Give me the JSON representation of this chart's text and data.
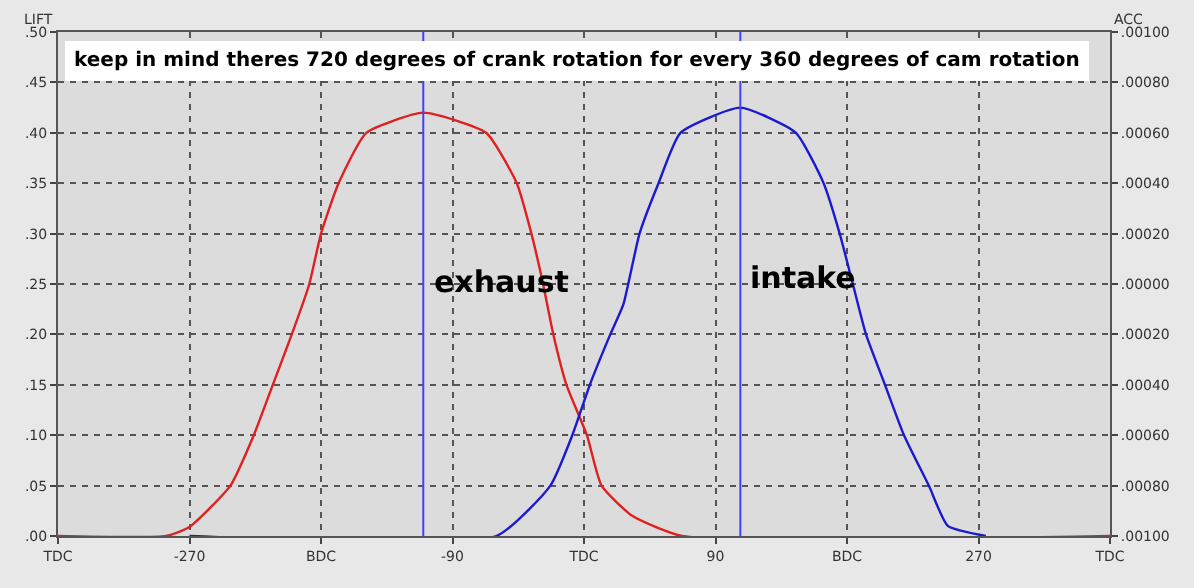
{
  "chart_data": {
    "type": "line",
    "title": "keep in mind theres 720 degrees of crank rotation for every 360 degrees of cam rotation",
    "ylabel": "LIFT",
    "y2label": "ACC",
    "series": [
      {
        "name": "exhaust",
        "color": "#e02020",
        "x": [
          -360,
          -286,
          -270,
          -242,
          -226,
          -213,
          -200,
          -188,
          -180,
          -168,
          -149,
          -110,
          -67,
          -46,
          -36,
          -28,
          -21,
          -12,
          2,
          12,
          33,
          67,
          360
        ],
        "values": [
          0,
          0,
          0.009,
          0.05,
          0.1,
          0.15,
          0.2,
          0.25,
          0.3,
          0.35,
          0.4,
          0.42,
          0.4,
          0.35,
          0.3,
          0.25,
          0.2,
          0.15,
          0.1,
          0.05,
          0.02,
          0,
          0
        ]
      },
      {
        "name": "intake",
        "color": "#1a1ad0",
        "x": [
          -270,
          -60,
          -23,
          -8,
          4,
          18,
          27,
          38,
          51,
          66,
          107,
          145,
          164,
          175,
          184,
          193,
          206,
          219,
          236,
          249,
          275
        ],
        "values": [
          0,
          0,
          0.05,
          0.1,
          0.15,
          0.2,
          0.23,
          0.3,
          0.35,
          0.4,
          0.425,
          0.4,
          0.35,
          0.3,
          0.25,
          0.2,
          0.15,
          0.1,
          0.05,
          0.01,
          0
        ]
      }
    ],
    "ref_lines": [
      {
        "axis": "x",
        "value": -110,
        "color": "#4040ff"
      },
      {
        "axis": "x",
        "value": 107,
        "color": "#4040ff"
      }
    ],
    "xlim": [
      -360,
      360
    ],
    "xticks": [
      {
        "value": -360,
        "label": "TDC"
      },
      -270,
      {
        "value": -180,
        "label": "BDC"
      },
      -90,
      {
        "value": 0,
        "label": "TDC"
      },
      90,
      {
        "value": 180,
        "label": "BDC"
      },
      270,
      {
        "value": 360,
        "label": "TDC"
      }
    ],
    "ylim": [
      0,
      0.5
    ],
    "yticks": [
      {
        "value": 0,
        "label": ".00"
      },
      {
        "value": 0.05,
        "label": ".05"
      },
      {
        "value": 0.1,
        "label": ".10"
      },
      {
        "value": 0.15,
        "label": ".15"
      },
      {
        "value": 0.2,
        "label": ".20"
      },
      {
        "value": 0.25,
        "label": ".25"
      },
      {
        "value": 0.3,
        "label": ".30"
      },
      {
        "value": 0.35,
        "label": ".35"
      },
      {
        "value": 0.4,
        "label": ".40"
      },
      {
        "value": 0.45,
        "label": ".45"
      },
      {
        "value": 0.5,
        "label": ".50"
      }
    ],
    "y2lim": [
      -0.001,
      0.001
    ],
    "y2ticks": [
      {
        "value": 0.001,
        "label": ".00100"
      },
      {
        "value": 0.0008,
        "label": ".00080"
      },
      {
        "value": 0.0006,
        "label": ".00060"
      },
      {
        "value": 0.0004,
        "label": ".00040"
      },
      {
        "value": 0.0002,
        "label": ".00020"
      },
      {
        "value": 0,
        "label": ".00000"
      },
      {
        "value": -0.0002,
        "label": ".00020"
      },
      {
        "value": -0.0004,
        "label": ".00040"
      },
      {
        "value": -0.0006,
        "label": ".00060"
      },
      {
        "value": -0.0008,
        "label": ".00080"
      },
      {
        "value": -0.001,
        "label": ".00100"
      }
    ],
    "grid": true,
    "legend": false,
    "marker": "none",
    "line_style": "solid"
  }
}
